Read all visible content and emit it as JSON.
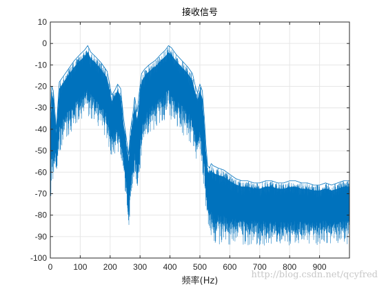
{
  "chart_data": {
    "type": "line",
    "title": "接收信号",
    "xlabel": "频率(Hz)",
    "ylabel": "",
    "xlim": [
      0,
      1000
    ],
    "ylim": [
      -100,
      10
    ],
    "xticks": [
      0,
      100,
      200,
      300,
      400,
      500,
      600,
      700,
      800,
      900
    ],
    "yticks": [
      10,
      0,
      -10,
      -20,
      -30,
      -40,
      -50,
      -60,
      -70,
      -80,
      -90,
      -100
    ],
    "grid": true,
    "series_color": "#0072BD",
    "series": [
      {
        "x": [
          0,
          5,
          10,
          20,
          30,
          45,
          60,
          80,
          100,
          115,
          125,
          135,
          150,
          170,
          190,
          205,
          215,
          225,
          235,
          245,
          255,
          262,
          268,
          275,
          282,
          290,
          298,
          305,
          315,
          330,
          350,
          370,
          385,
          395,
          405,
          420,
          440,
          460,
          475,
          485,
          492,
          500,
          508,
          515,
          520,
          526,
          532,
          538,
          545,
          560,
          580,
          600,
          620,
          640,
          660,
          680,
          700,
          720,
          740,
          760,
          780,
          800,
          820,
          840,
          860,
          880,
          900,
          920,
          940,
          960,
          980,
          999
        ],
        "upper": [
          -35,
          -20,
          -22,
          -40,
          -18,
          -15,
          -12,
          -8,
          -5,
          -3,
          -1,
          -4,
          -6,
          -9,
          -13,
          -24,
          -22,
          -19,
          -21,
          -35,
          -45,
          -52,
          -40,
          -34,
          -25,
          -32,
          -22,
          -14,
          -12,
          -10,
          -8,
          -5,
          -3,
          -1,
          -2,
          -5,
          -8,
          -11,
          -14,
          -20,
          -23,
          -19,
          -22,
          -35,
          -47,
          -57,
          -58,
          -56,
          -57,
          -58,
          -59,
          -61,
          -63,
          -64,
          -64,
          -65,
          -65,
          -64,
          -64,
          -65,
          -65,
          -64,
          -64,
          -65,
          -65,
          -66,
          -66,
          -65,
          -66,
          -65,
          -64,
          -64
        ],
        "lower": [
          -83,
          -68,
          -64,
          -60,
          -52,
          -47,
          -44,
          -40,
          -37,
          -35,
          -34,
          -36,
          -38,
          -42,
          -45,
          -56,
          -52,
          -50,
          -58,
          -66,
          -74,
          -86,
          -82,
          -70,
          -63,
          -75,
          -62,
          -55,
          -47,
          -44,
          -41,
          -38,
          -36,
          -35,
          -37,
          -40,
          -43,
          -46,
          -50,
          -54,
          -58,
          -52,
          -60,
          -71,
          -80,
          -85,
          -88,
          -91,
          -96,
          -95,
          -94,
          -95,
          -94,
          -95,
          -95,
          -94,
          -95,
          -95,
          -94,
          -95,
          -95,
          -96,
          -95,
          -95,
          -95,
          -95,
          -95,
          -94,
          -95,
          -95,
          -94,
          -95
        ],
        "core": [
          -60,
          -44,
          -42,
          -50,
          -35,
          -31,
          -28,
          -24,
          -21,
          -19,
          -18,
          -20,
          -22,
          -26,
          -29,
          -40,
          -37,
          -35,
          -40,
          -50,
          -60,
          -69,
          -61,
          -52,
          -44,
          -53,
          -42,
          -34,
          -30,
          -27,
          -24,
          -21,
          -19,
          -18,
          -20,
          -22,
          -25,
          -28,
          -32,
          -37,
          -40,
          -36,
          -41,
          -53,
          -63,
          -71,
          -73,
          -73,
          -76,
          -76,
          -76,
          -78,
          -78,
          -79,
          -79,
          -79,
          -80,
          -79,
          -79,
          -80,
          -80,
          -80,
          -79,
          -80,
          -80,
          -80,
          -80,
          -79,
          -80,
          -80,
          -79,
          -79
        ]
      }
    ]
  },
  "watermark": "http://blog.csdn.net/qcyfred"
}
